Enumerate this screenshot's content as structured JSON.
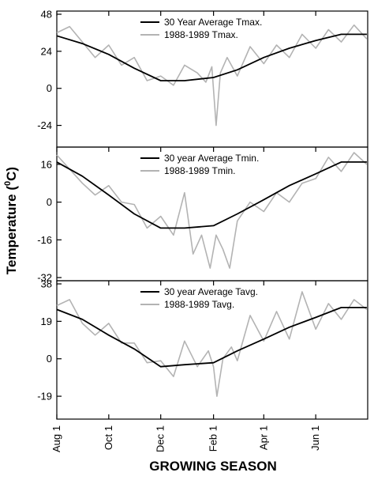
{
  "chart_data": {
    "type": "line",
    "ylabel": "Temperature (⁰C)",
    "ylabel_main": "Temperature (",
    "ylabel_sup": "0",
    "ylabel_end": "C)",
    "xlabel": "GROWING SEASON",
    "x_ticks": [
      "Aug 1",
      "Oct 1",
      "Dec 1",
      "Feb 1",
      "Apr 1",
      "Jun 1"
    ],
    "x_unit": "day of growing season (Aug 1 = 0)",
    "x_tick_days": [
      0,
      61,
      122,
      184,
      243,
      304
    ],
    "xlim": [
      0,
      365
    ],
    "legend_position": "top-center",
    "colors": {
      "average": "#000000",
      "observed": "#b3b3b3"
    },
    "panels": [
      {
        "ylim": [
          -36,
          48
        ],
        "yticks": [
          48,
          24,
          0,
          -24
        ],
        "series": [
          {
            "name": "30 Year Average Tmax.",
            "x": [
              0,
              30,
              61,
              91,
              122,
              150,
              184,
              212,
              243,
              273,
              304,
              334,
              364
            ],
            "y": [
              34,
              29,
              22,
              13,
              5,
              5,
              7,
              12,
              20,
              26,
              31,
              35,
              35
            ]
          },
          {
            "name": "1988-1989 Tmax.",
            "x": [
              0,
              15,
              30,
              45,
              61,
              76,
              91,
              106,
              122,
              137,
              150,
              165,
              175,
              182,
              187,
              192,
              200,
              212,
              227,
              243,
              258,
              273,
              288,
              304,
              319,
              334,
              349,
              364
            ],
            "y": [
              36,
              40,
              30,
              20,
              28,
              15,
              20,
              5,
              8,
              2,
              15,
              10,
              4,
              14,
              -24,
              10,
              20,
              8,
              27,
              16,
              28,
              20,
              35,
              26,
              38,
              30,
              41,
              32
            ]
          }
        ]
      },
      {
        "ylim": [
          -32,
          22
        ],
        "yticks": [
          16,
          0,
          -16,
          -32
        ],
        "series": [
          {
            "name": "30 year Average Tmin.",
            "x": [
              0,
              30,
              61,
              91,
              122,
              150,
              184,
              212,
              243,
              273,
              304,
              334,
              364
            ],
            "y": [
              17,
              11,
              3,
              -5,
              -11,
              -11,
              -10,
              -5,
              1,
              7,
              12,
              17,
              17
            ]
          },
          {
            "name": "1988-1989 Tmin.",
            "x": [
              0,
              15,
              30,
              45,
              61,
              76,
              91,
              106,
              122,
              137,
              150,
              160,
              170,
              180,
              187,
              195,
              203,
              212,
              227,
              243,
              258,
              273,
              288,
              304,
              319,
              334,
              349,
              364
            ],
            "y": [
              20,
              14,
              8,
              3,
              7,
              0,
              -1,
              -11,
              -6,
              -14,
              4,
              -22,
              -14,
              -28,
              -14,
              -20,
              -28,
              -8,
              0,
              -4,
              4,
              0,
              8,
              10,
              19,
              13,
              21,
              16
            ]
          }
        ]
      },
      {
        "ylim": [
          -29,
          38
        ],
        "yticks": [
          38,
          19,
          0,
          -19
        ],
        "series": [
          {
            "name": "30 year Average Tavg.",
            "x": [
              0,
              30,
              61,
              91,
              122,
              150,
              184,
              212,
              243,
              273,
              304,
              334,
              364
            ],
            "y": [
              25,
              20,
              12,
              5,
              -4,
              -3,
              -2,
              4,
              10,
              16,
              21,
              26,
              26
            ]
          },
          {
            "name": "1988-1989 Tavg.",
            "x": [
              0,
              15,
              30,
              45,
              61,
              76,
              91,
              106,
              122,
              137,
              150,
              165,
              178,
              184,
              188,
              195,
              205,
              212,
              227,
              243,
              258,
              273,
              288,
              304,
              319,
              334,
              349,
              364
            ],
            "y": [
              27,
              30,
              18,
              12,
              18,
              8,
              8,
              -2,
              -1,
              -9,
              9,
              -4,
              4,
              -4,
              -19,
              0,
              6,
              -1,
              22,
              9,
              24,
              10,
              34,
              15,
              28,
              20,
              30,
              25
            ]
          }
        ]
      }
    ]
  }
}
